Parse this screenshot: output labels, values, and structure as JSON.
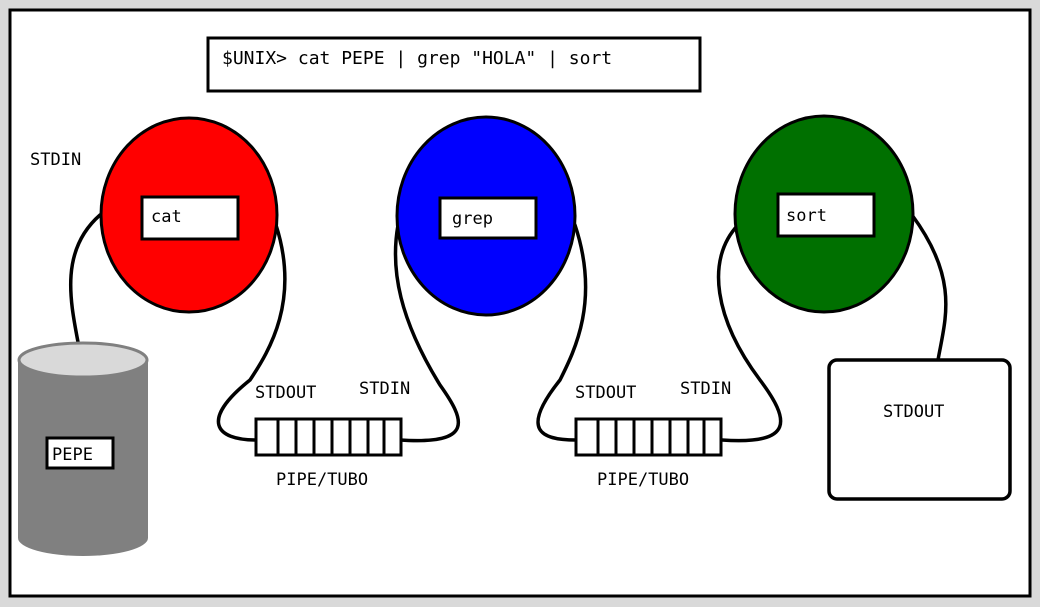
{
  "command": "$UNIX> cat PEPE | grep \"HOLA\" | sort",
  "processes": [
    {
      "name": "cat",
      "color": "#ff0000"
    },
    {
      "name": "grep",
      "color": "#0000ff"
    },
    {
      "name": "sort",
      "color": "#007000"
    }
  ],
  "labels": {
    "stdin_cat": "STDIN",
    "stdout_cat": "STDOUT",
    "stdin_grep": "STDIN",
    "stdout_grep": "STDOUT",
    "stdin_sort": "STDIN",
    "stdout_final": "STDOUT",
    "pipe1": "PIPE/TUBO",
    "pipe2": "PIPE/TUBO"
  },
  "file": {
    "name": "PEPE",
    "color": "#808080"
  },
  "colors": {
    "frame": "#000000",
    "background": "#ffffff",
    "outer": "#d9d9d9"
  }
}
